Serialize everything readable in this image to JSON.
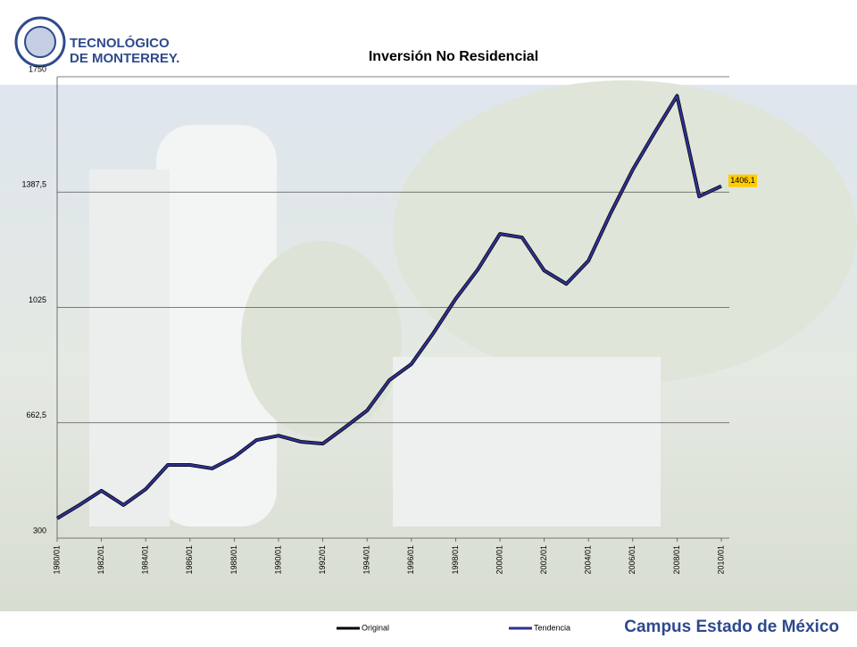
{
  "branding": {
    "logo_line1": "TECNOLÓGICO",
    "logo_line2": "DE MONTERREY.",
    "campus": "Campus Estado de México"
  },
  "chart_data": {
    "type": "line",
    "title": "Inversión No Residencial",
    "categories": [
      "1980/01",
      null,
      "1982/01",
      null,
      "1984/01",
      null,
      "1986/01",
      null,
      "1988/01",
      null,
      "1990/01",
      null,
      "1992/01",
      null,
      "1994/01",
      null,
      "1996/01",
      null,
      "1998/01",
      null,
      "2000/01",
      null,
      "2002/01",
      null,
      "2004/01",
      null,
      "2006/01",
      null,
      "2008/01",
      null,
      "2010/01"
    ],
    "series": [
      {
        "name": "Original",
        "color": "#000000",
        "values": [
          362,
          404,
          449,
          404,
          454,
          530,
          530,
          519,
          555,
          608,
          622,
          603,
          597,
          648,
          701,
          796,
          847,
          945,
          1052,
          1144,
          1256,
          1245,
          1141,
          1099,
          1172,
          1321,
          1458,
          1576,
          1690,
          1374,
          1406.1
        ]
      },
      {
        "name": "Tendencia",
        "color": "#2e3192",
        "values": [
          362,
          404,
          449,
          404,
          454,
          530,
          530,
          519,
          555,
          608,
          622,
          603,
          597,
          648,
          701,
          796,
          847,
          945,
          1052,
          1144,
          1256,
          1245,
          1141,
          1099,
          1172,
          1321,
          1458,
          1576,
          1690,
          1374,
          1406.1
        ],
        "value_labels": [
          null,
          null,
          null,
          null,
          null,
          null,
          null,
          null,
          null,
          null,
          null,
          null,
          null,
          null,
          null,
          null,
          null,
          null,
          null,
          null,
          null,
          null,
          null,
          null,
          null,
          null,
          null,
          null,
          null,
          null,
          "1406,1"
        ]
      }
    ],
    "ylim": [
      300,
      1750
    ],
    "yticks": [
      300,
      {
        "value": 662.5,
        "label": "662,5"
      },
      1025,
      {
        "value": 1387.5,
        "label": "1387,5"
      },
      1750
    ],
    "grid": true,
    "legend": "bottom"
  }
}
